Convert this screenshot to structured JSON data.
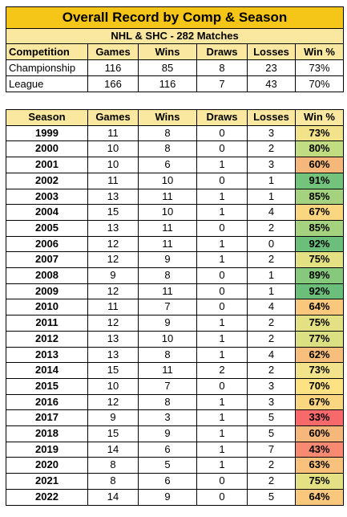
{
  "title": "Overall Record by Comp & Season",
  "subtitle": "NHL & SHC - 282 Matches",
  "columns_comp": [
    "Competition",
    "Games",
    "Wins",
    "Draws",
    "Losses",
    "Win %"
  ],
  "competitions": [
    {
      "name": "Championship",
      "games": "116",
      "wins": "85",
      "draws": "8",
      "losses": "23",
      "win_pct": "73%"
    },
    {
      "name": "League",
      "games": "166",
      "wins": "116",
      "draws": "7",
      "losses": "43",
      "win_pct": "70%"
    }
  ],
  "columns_season": [
    "Season",
    "Games",
    "Wins",
    "Draws",
    "Losses",
    "Win %"
  ],
  "seasons": [
    {
      "season": "1999",
      "games": "11",
      "wins": "8",
      "draws": "0",
      "losses": "3",
      "win_pct": "73%",
      "color": "#f2e38a"
    },
    {
      "season": "2000",
      "games": "10",
      "wins": "8",
      "draws": "0",
      "losses": "2",
      "win_pct": "80%",
      "color": "#c2dc82"
    },
    {
      "season": "2001",
      "games": "10",
      "wins": "6",
      "draws": "1",
      "losses": "3",
      "win_pct": "60%",
      "color": "#f6b77b"
    },
    {
      "season": "2002",
      "games": "11",
      "wins": "10",
      "draws": "0",
      "losses": "1",
      "win_pct": "91%",
      "color": "#74c37c"
    },
    {
      "season": "2003",
      "games": "13",
      "wins": "11",
      "draws": "1",
      "losses": "1",
      "win_pct": "85%",
      "color": "#a4d27f"
    },
    {
      "season": "2004",
      "games": "15",
      "wins": "10",
      "draws": "1",
      "losses": "4",
      "win_pct": "67%",
      "color": "#fbd680"
    },
    {
      "season": "2005",
      "games": "13",
      "wins": "11",
      "draws": "0",
      "losses": "2",
      "win_pct": "85%",
      "color": "#a4d27f"
    },
    {
      "season": "2006",
      "games": "12",
      "wins": "11",
      "draws": "1",
      "losses": "0",
      "win_pct": "92%",
      "color": "#6bbf7b"
    },
    {
      "season": "2007",
      "games": "12",
      "wins": "9",
      "draws": "1",
      "losses": "2",
      "win_pct": "75%",
      "color": "#e4e184"
    },
    {
      "season": "2008",
      "games": "9",
      "wins": "8",
      "draws": "0",
      "losses": "1",
      "win_pct": "89%",
      "color": "#86c97d"
    },
    {
      "season": "2009",
      "games": "12",
      "wins": "11",
      "draws": "0",
      "losses": "1",
      "win_pct": "92%",
      "color": "#6bbf7b"
    },
    {
      "season": "2010",
      "games": "11",
      "wins": "7",
      "draws": "0",
      "losses": "4",
      "win_pct": "64%",
      "color": "#f9c87d"
    },
    {
      "season": "2011",
      "games": "12",
      "wins": "9",
      "draws": "1",
      "losses": "2",
      "win_pct": "75%",
      "color": "#e4e184"
    },
    {
      "season": "2012",
      "games": "13",
      "wins": "10",
      "draws": "1",
      "losses": "2",
      "win_pct": "77%",
      "color": "#dbe083"
    },
    {
      "season": "2013",
      "games": "13",
      "wins": "8",
      "draws": "1",
      "losses": "4",
      "win_pct": "62%",
      "color": "#f7be7c"
    },
    {
      "season": "2014",
      "games": "15",
      "wins": "11",
      "draws": "2",
      "losses": "2",
      "win_pct": "73%",
      "color": "#f2e38a"
    },
    {
      "season": "2015",
      "games": "10",
      "wins": "7",
      "draws": "0",
      "losses": "3",
      "win_pct": "70%",
      "color": "#fde283"
    },
    {
      "season": "2016",
      "games": "12",
      "wins": "8",
      "draws": "1",
      "losses": "3",
      "win_pct": "67%",
      "color": "#fbd680"
    },
    {
      "season": "2017",
      "games": "9",
      "wins": "3",
      "draws": "1",
      "losses": "5",
      "win_pct": "33%",
      "color": "#f8696b"
    },
    {
      "season": "2018",
      "games": "15",
      "wins": "9",
      "draws": "1",
      "losses": "5",
      "win_pct": "60%",
      "color": "#f6b77b"
    },
    {
      "season": "2019",
      "games": "14",
      "wins": "6",
      "draws": "1",
      "losses": "7",
      "win_pct": "43%",
      "color": "#f88a72"
    },
    {
      "season": "2020",
      "games": "8",
      "wins": "5",
      "draws": "1",
      "losses": "2",
      "win_pct": "63%",
      "color": "#f8c27c"
    },
    {
      "season": "2021",
      "games": "8",
      "wins": "6",
      "draws": "0",
      "losses": "2",
      "win_pct": "75%",
      "color": "#e4e184"
    },
    {
      "season": "2022",
      "games": "14",
      "wins": "9",
      "draws": "0",
      "losses": "5",
      "win_pct": "64%",
      "color": "#f9c87d"
    }
  ],
  "colors": {
    "title_bg": "#f5c518",
    "header_bg": "#fbe8a0"
  }
}
